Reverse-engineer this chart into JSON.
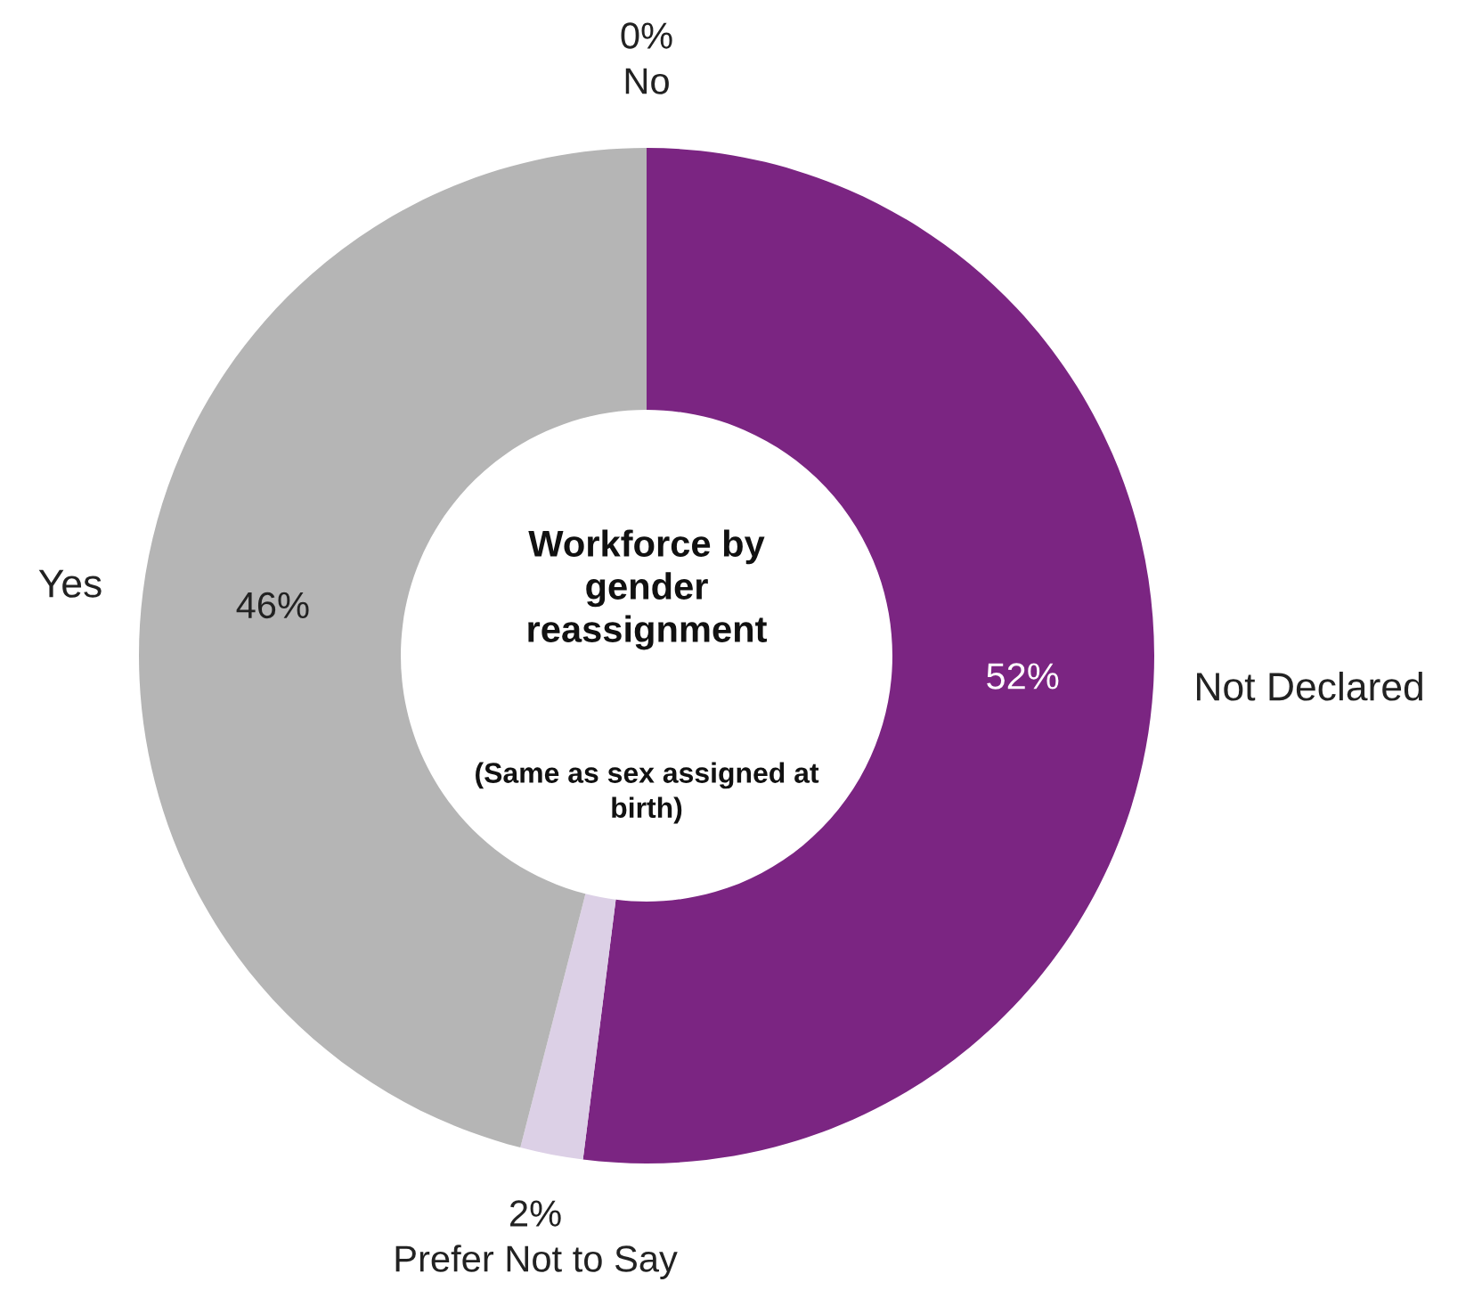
{
  "chart_data": {
    "type": "donut",
    "title": "Workforce by gender reassignment",
    "subtitle": "(Same as sex assigned at birth)",
    "categories": [
      "Not Declared",
      "Prefer Not to Say",
      "Yes",
      "No"
    ],
    "values": [
      52,
      2,
      46,
      0
    ],
    "colors": [
      "#7b2582",
      "#dcd0e6",
      "#b5b5b5",
      "#5a5a5a"
    ],
    "value_labels": [
      "52%",
      "2%",
      "46%",
      "0%"
    ],
    "legend": false
  }
}
